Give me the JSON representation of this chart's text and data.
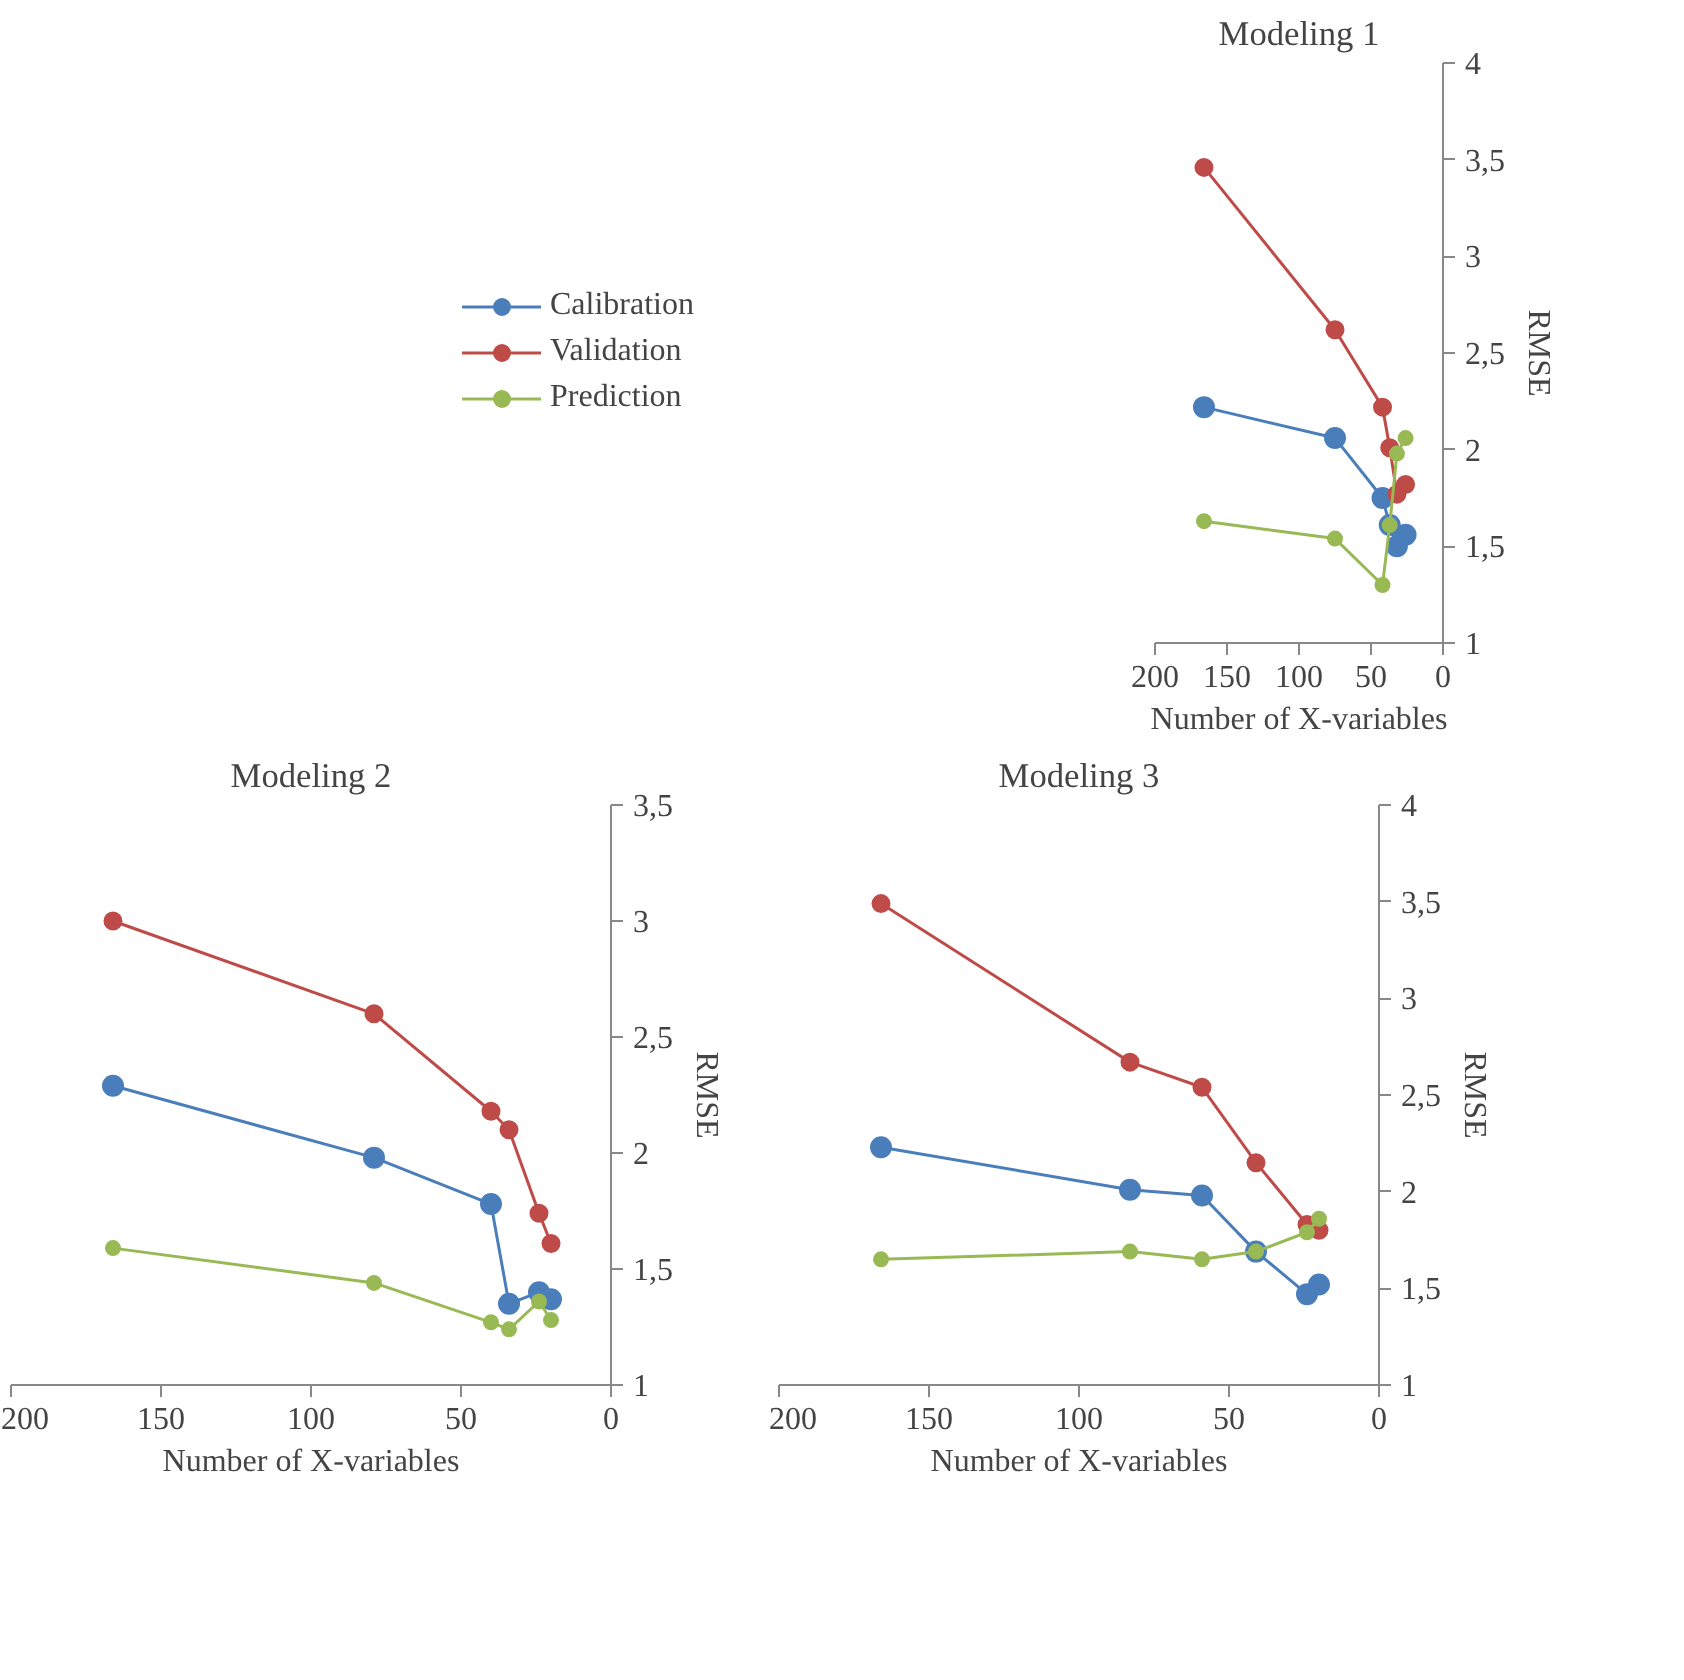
{
  "chart_data": [
    {
      "type": "line",
      "title": "Modeling 1",
      "xlabel": "Number of X-variables",
      "ylabel": "RMSE",
      "xlim": [
        200,
        0
      ],
      "xticks": [
        200,
        150,
        100,
        50,
        0
      ],
      "ylim": [
        1,
        4
      ],
      "yticks": [
        1,
        {
          "value": 1.5,
          "label": "1,5"
        },
        2,
        {
          "value": 2.5,
          "label": "2,5"
        },
        3,
        {
          "value": 3.5,
          "label": "3,5"
        },
        4
      ],
      "grid": false,
      "legend": "left",
      "marker": "circle",
      "line_style": "solid",
      "series": [
        {
          "name": "Calibration",
          "color": "#4a7ebb",
          "x": [
            166,
            75,
            42,
            37,
            32,
            26
          ],
          "values": [
            2.22,
            2.06,
            1.75,
            1.61,
            1.5,
            1.56
          ]
        },
        {
          "name": "Validation",
          "color": "#be4b48",
          "x": [
            166,
            75,
            42,
            37,
            32,
            26
          ],
          "values": [
            3.46,
            2.62,
            2.22,
            2.01,
            1.77,
            1.82
          ]
        },
        {
          "name": "Prediction",
          "color": "#98b954",
          "x": [
            166,
            75,
            42,
            37,
            32,
            26
          ],
          "values": [
            1.63,
            1.54,
            1.3,
            1.61,
            1.98,
            2.06
          ]
        }
      ]
    },
    {
      "type": "line",
      "title": "Modeling 2",
      "xlabel": "Number of X-variables",
      "ylabel": "RMSE",
      "xlim": [
        200,
        0
      ],
      "xticks": [
        200,
        150,
        100,
        50,
        0
      ],
      "ylim": [
        1,
        3.5
      ],
      "yticks": [
        1,
        {
          "value": 1.5,
          "label": "1,5"
        },
        2,
        {
          "value": 2.5,
          "label": "2,5"
        },
        3,
        {
          "value": 3.5,
          "label": "3,5"
        }
      ],
      "grid": false,
      "marker": "circle",
      "line_style": "solid",
      "series": [
        {
          "color": "#4a7ebb",
          "x": [
            166,
            79,
            40,
            34,
            24,
            20
          ],
          "values": [
            2.29,
            1.98,
            1.78,
            1.35,
            1.4,
            1.37
          ]
        },
        {
          "color": "#be4b48",
          "x": [
            166,
            79,
            40,
            34,
            24,
            20
          ],
          "values": [
            3.0,
            2.6,
            2.18,
            2.1,
            1.74,
            1.61
          ]
        },
        {
          "color": "#98b954",
          "x": [
            166,
            79,
            40,
            34,
            24,
            20
          ],
          "values": [
            1.59,
            1.44,
            1.27,
            1.24,
            1.36,
            1.28
          ]
        }
      ]
    },
    {
      "type": "line",
      "title": "Modeling 3",
      "xlabel": "Number of X-variables",
      "ylabel": "RMSE",
      "xlim": [
        200,
        0
      ],
      "xticks": [
        200,
        150,
        100,
        50,
        0
      ],
      "ylim": [
        1,
        4
      ],
      "yticks": [
        1,
        {
          "value": 1.5,
          "label": "1,5"
        },
        2,
        {
          "value": 2.5,
          "label": "2,5"
        },
        3,
        {
          "value": 3.5,
          "label": "3,5"
        },
        4
      ],
      "grid": false,
      "marker": "circle",
      "line_style": "solid",
      "series": [
        {
          "color": "#4a7ebb",
          "x": [
            166,
            83,
            59,
            41,
            24,
            20
          ],
          "values": [
            2.23,
            2.01,
            1.98,
            1.69,
            1.47,
            1.52
          ]
        },
        {
          "color": "#be4b48",
          "x": [
            166,
            83,
            59,
            41,
            24,
            20
          ],
          "values": [
            3.49,
            2.67,
            2.54,
            2.15,
            1.83,
            1.8
          ]
        },
        {
          "color": "#98b954",
          "x": [
            166,
            83,
            59,
            41,
            24,
            20
          ],
          "values": [
            1.65,
            1.69,
            1.65,
            1.69,
            1.79,
            1.86
          ]
        }
      ]
    }
  ]
}
